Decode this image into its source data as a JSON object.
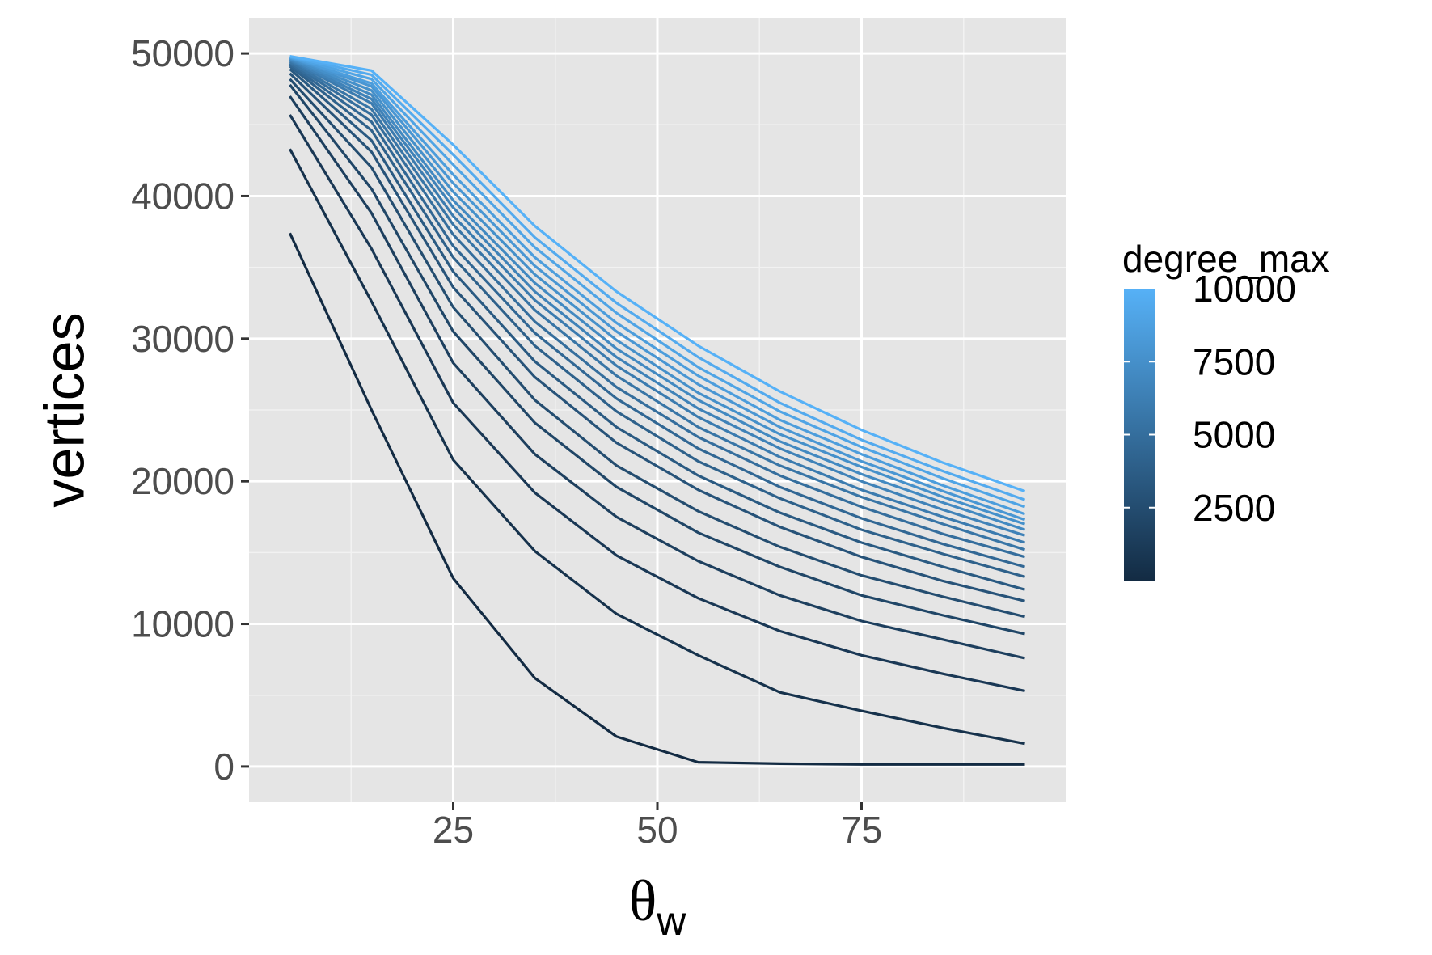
{
  "chart_data": {
    "type": "line",
    "xlabel": "θ",
    "xlabel_subscript": "w",
    "ylabel": "vertices",
    "xlim": [
      0,
      100
    ],
    "ylim": [
      -2500,
      52500
    ],
    "x_ticks": [
      25,
      50,
      75
    ],
    "y_ticks": [
      0,
      10000,
      20000,
      30000,
      40000,
      50000
    ],
    "grid": true,
    "legend": {
      "title": "degree_max",
      "placement": "right",
      "type": "colorbar",
      "min": 0,
      "max": 10000,
      "ticks": [
        2500,
        5000,
        7500,
        10000
      ],
      "color_low": "#132B43",
      "color_high": "#56B1F7"
    },
    "x": [
      5,
      15,
      25,
      35,
      45,
      55,
      65,
      75,
      85,
      95
    ],
    "series": [
      {
        "degree_max": 0,
        "values": [
          37400,
          25000,
          13200,
          6200,
          2100,
          300,
          200,
          150,
          150,
          150
        ]
      },
      {
        "degree_max": 500,
        "values": [
          43300,
          32600,
          21500,
          15100,
          10700,
          7800,
          5200,
          3900,
          2700,
          1600
        ]
      },
      {
        "degree_max": 1000,
        "values": [
          45700,
          36300,
          25500,
          19200,
          14800,
          11800,
          9500,
          7800,
          6500,
          5300
        ]
      },
      {
        "degree_max": 1500,
        "values": [
          47000,
          38800,
          28300,
          21900,
          17500,
          14400,
          12000,
          10200,
          8900,
          7600
        ]
      },
      {
        "degree_max": 2000,
        "values": [
          47800,
          40500,
          30500,
          24100,
          19600,
          16400,
          14000,
          12000,
          10600,
          9300
        ]
      },
      {
        "degree_max": 2500,
        "values": [
          48200,
          42000,
          32200,
          25700,
          21100,
          17900,
          15400,
          13400,
          11900,
          10500
        ]
      },
      {
        "degree_max": 3000,
        "values": [
          48600,
          43100,
          33600,
          27300,
          22700,
          19400,
          16800,
          14700,
          13000,
          11600
        ]
      },
      {
        "degree_max": 3500,
        "values": [
          48900,
          43900,
          34700,
          28400,
          23800,
          20400,
          17800,
          15700,
          14000,
          12400
        ]
      },
      {
        "degree_max": 4000,
        "values": [
          49100,
          44600,
          35700,
          29500,
          24900,
          21400,
          18800,
          16600,
          14900,
          13300
        ]
      },
      {
        "degree_max": 4500,
        "values": [
          49200,
          45200,
          36500,
          30400,
          25800,
          22300,
          19600,
          17400,
          15600,
          14000
        ]
      },
      {
        "degree_max": 5000,
        "values": [
          49300,
          45700,
          37300,
          31200,
          26600,
          23100,
          20400,
          18200,
          16300,
          14700
        ]
      },
      {
        "degree_max": 5500,
        "values": [
          49400,
          46100,
          38000,
          32000,
          27400,
          23800,
          21100,
          18900,
          17000,
          15200
        ]
      },
      {
        "degree_max": 6000,
        "values": [
          49500,
          46500,
          38600,
          32700,
          28100,
          24500,
          21700,
          19400,
          17500,
          15700
        ]
      },
      {
        "degree_max": 6500,
        "values": [
          49550,
          46800,
          39200,
          33300,
          28700,
          25100,
          22300,
          20000,
          18000,
          16200
        ]
      },
      {
        "degree_max": 7000,
        "values": [
          49600,
          47100,
          39700,
          33900,
          29300,
          25700,
          22800,
          20500,
          18500,
          16600
        ]
      },
      {
        "degree_max": 7500,
        "values": [
          49650,
          47400,
          40300,
          34500,
          29900,
          26200,
          23300,
          21000,
          18900,
          17000
        ]
      },
      {
        "degree_max": 8000,
        "values": [
          49700,
          47700,
          40900,
          35100,
          30500,
          26800,
          23800,
          21400,
          19300,
          17300
        ]
      },
      {
        "degree_max": 8500,
        "values": [
          49720,
          47900,
          41500,
          35700,
          31100,
          27400,
          24300,
          21900,
          19700,
          17700
        ]
      },
      {
        "degree_max": 9000,
        "values": [
          49750,
          48200,
          42200,
          36400,
          31800,
          28000,
          24900,
          22400,
          20200,
          18200
        ]
      },
      {
        "degree_max": 9500,
        "values": [
          49780,
          48500,
          42900,
          37100,
          32500,
          28700,
          25500,
          22900,
          20700,
          18700
        ]
      },
      {
        "degree_max": 10000,
        "values": [
          49800,
          48800,
          43600,
          37900,
          33300,
          29500,
          26300,
          23600,
          21300,
          19300
        ]
      }
    ]
  }
}
